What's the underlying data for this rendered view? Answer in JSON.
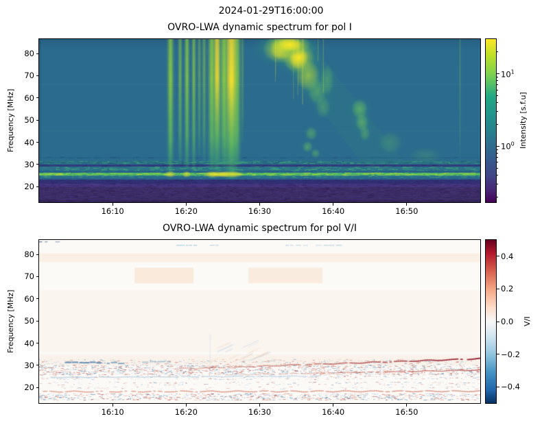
{
  "suptitle": "2024-01-29T16:00:00",
  "axes": {
    "ylabel": "Frequency [MHz]",
    "x_ticks": [
      {
        "label": "16:10",
        "minute": 10
      },
      {
        "label": "16:20",
        "minute": 20
      },
      {
        "label": "16:30",
        "minute": 30
      },
      {
        "label": "16:40",
        "minute": 40
      },
      {
        "label": "16:50",
        "minute": 50
      }
    ],
    "y_ticks": [
      80,
      70,
      60,
      50,
      40,
      30,
      20
    ],
    "x_range": [
      "16:00",
      "17:00"
    ],
    "y_range_mhz": [
      13,
      86.5
    ]
  },
  "chart_data": [
    {
      "type": "heatmap",
      "title": "OVRO-LWA dynamic spectrum for pol I",
      "xlabel": "",
      "ylabel": "Frequency [MHz]",
      "x_tick_labels": [
        "16:10",
        "16:20",
        "16:30",
        "16:40",
        "16:50"
      ],
      "x_range": [
        "16:00",
        "17:00"
      ],
      "y_ticks": [
        80,
        70,
        60,
        50,
        40,
        30,
        20
      ],
      "y_range_mhz": [
        13,
        86.5
      ],
      "colormap": "viridis",
      "colorbar": {
        "label": "Intensity [s.f.u]",
        "scale": "log",
        "range": [
          0.17,
          30
        ],
        "major_ticks": [
          {
            "mantissa": "10",
            "exponent": "1",
            "value": 10
          },
          {
            "mantissa": "10",
            "exponent": "0",
            "value": 1
          }
        ],
        "gradient_stops": [
          "#fde725 0%",
          "#bddf26 10%",
          "#7ad151 22%",
          "#22a884 35%",
          "#21918c 48%",
          "#2a788e 60%",
          "#355f8d 72%",
          "#414487 84%",
          "#482475 93%",
          "#440154 100%"
        ]
      },
      "phenomena": {
        "background": "#2b6b8d",
        "faint_lines": [
          {
            "f": 66,
            "color": "#ffffff",
            "alpha": 0.05
          },
          {
            "f": 45,
            "color": "#ffffff",
            "alpha": 0.03
          }
        ],
        "bands": [
          {
            "f0": 32.8,
            "f1": 33.5,
            "color": "#25608a",
            "alpha": 0.5,
            "noise": 0.15,
            "noise_colors": [
              "#1f4d78"
            ]
          },
          {
            "f0": 30.2,
            "f1": 31.4,
            "color": "#2c7a7d",
            "alpha": 0.55,
            "noise": 0.5,
            "noise_colors": [
              "#3fae74",
              "#1f4d78"
            ]
          },
          {
            "f0": 29.0,
            "f1": 29.9,
            "color": "#31397b",
            "alpha": 0.9,
            "noise": 0.3,
            "noise_colors": [
              "#27275f",
              "#3b4f85"
            ]
          },
          {
            "f0": 27.1,
            "f1": 29.0,
            "color": "#2e7e83",
            "alpha": 0.5,
            "noise": 0.55,
            "noise_colors": [
              "#45b878",
              "#2a6a8c"
            ]
          },
          {
            "f0": 26.3,
            "f1": 27.1,
            "color": "#275c86",
            "alpha": 0.7,
            "noise": 0.2,
            "noise_colors": [
              "#2f7f82"
            ]
          },
          {
            "f0": 25.0,
            "f1": 26.3,
            "color": "#56c15f",
            "alpha": 0.95,
            "noise": 0.65,
            "noise_colors": [
              "#d8e429",
              "#8ed645",
              "#2f8f7f"
            ]
          },
          {
            "f0": 24.1,
            "f1": 25.0,
            "color": "#2c6f8c",
            "alpha": 0.8,
            "noise": 0.25,
            "noise_colors": [
              "#3fae74"
            ]
          },
          {
            "f0": 23.3,
            "f1": 24.1,
            "color": "#2a5f88",
            "alpha": 0.7,
            "noise": 0.2,
            "noise_colors": [
              "#2f7f82"
            ]
          },
          {
            "f0": 21.4,
            "f1": 23.3,
            "color": "#322e74",
            "alpha": 0.92,
            "noise": 0.35,
            "noise_colors": [
              "#262055",
              "#3d3f82"
            ]
          },
          {
            "f0": 19.8,
            "f1": 21.4,
            "color": "#45307c",
            "alpha": 0.9,
            "noise": 0.4,
            "noise_colors": [
              "#533f85",
              "#332158"
            ]
          },
          {
            "f0": 13.0,
            "f1": 19.8,
            "color": "#3c2c66",
            "alpha": 1,
            "noise": 0.5,
            "noise_colors": [
              "#473677",
              "#2e2050",
              "#44386e"
            ]
          },
          {
            "f0": 13.0,
            "f1": 14.0,
            "color": "#32235a",
            "alpha": 0.7,
            "noise": 0.3,
            "noise_colors": [
              "#2a1c4e"
            ]
          }
        ],
        "type_iii_bursts": [
          {
            "t": 17.8,
            "w": 0.45,
            "f_low": 26.0,
            "i": 0.85
          },
          {
            "t": 19.1,
            "w": 0.3,
            "f_low": 30.0,
            "i": 0.6
          },
          {
            "t": 20.1,
            "w": 0.35,
            "f_low": 28.0,
            "i": 0.8
          },
          {
            "t": 21.0,
            "w": 0.3,
            "f_low": 27.0,
            "i": 0.7
          },
          {
            "t": 21.7,
            "w": 0.25,
            "f_low": 34.0,
            "i": 0.45
          },
          {
            "t": 22.4,
            "w": 0.3,
            "f_low": 32.0,
            "i": 0.5
          },
          {
            "t": 23.4,
            "w": 0.5,
            "f_low": 28.0,
            "i": 0.85
          },
          {
            "t": 24.2,
            "w": 0.6,
            "f_low": 27.0,
            "i": 0.9
          },
          {
            "t": 25.1,
            "w": 0.5,
            "f_low": 29.0,
            "i": 0.85
          },
          {
            "t": 26.1,
            "w": 1.0,
            "f_low": 23.5,
            "i": 1.0
          },
          {
            "t": 26.9,
            "w": 0.45,
            "f_low": 30.0,
            "i": 0.7
          },
          {
            "t": 27.6,
            "w": 0.2,
            "f_low": 40.0,
            "i": 0.35
          },
          {
            "t": 57.2,
            "w": 0.15,
            "f_low": 34.0,
            "i": 0.25
          }
        ],
        "overlays": [
          {
            "f0": 21.4,
            "f1": 23.3,
            "color": "#322e74",
            "alpha": 0.4
          },
          {
            "f0": 29.0,
            "f1": 29.9,
            "color": "#31397b",
            "alpha": 0.3
          }
        ],
        "type_ii": {
          "lane": {
            "t_top": 31.0,
            "t_top2": 36.5,
            "t_bot": 44.0,
            "t_bot2": 50.0,
            "f_bot": 30.0,
            "color": "#3f9f7a",
            "alpha": 0.1
          },
          "blobs": [
            {
              "t": 33.0,
              "f": 82,
              "rt": 2.6,
              "rf": 6.5,
              "i": 1.0
            },
            {
              "t": 35.3,
              "f": 78,
              "rt": 2.2,
              "rf": 7.0,
              "i": 1.0
            },
            {
              "t": 34.2,
              "f": 84,
              "rt": 2.8,
              "rf": 4.0,
              "i": 0.95
            },
            {
              "t": 36.6,
              "f": 70,
              "rt": 1.6,
              "rf": 7.0,
              "i": 0.8
            },
            {
              "t": 37.8,
              "f": 63,
              "rt": 1.3,
              "rf": 6.0,
              "i": 0.6
            },
            {
              "t": 39.2,
              "f": 68,
              "rt": 0.9,
              "rf": 7.0,
              "i": 0.5
            },
            {
              "t": 38.6,
              "f": 56,
              "rt": 1.0,
              "rf": 5.0,
              "i": 0.45
            },
            {
              "t": 43.6,
              "f": 55,
              "rt": 1.1,
              "rf": 4.5,
              "i": 0.75
            },
            {
              "t": 43.9,
              "f": 49,
              "rt": 0.9,
              "rf": 4.0,
              "i": 0.7
            },
            {
              "t": 44.3,
              "f": 44,
              "rt": 0.7,
              "rf": 3.5,
              "i": 0.5
            },
            {
              "t": 37.0,
              "f": 44,
              "rt": 0.8,
              "rf": 3.0,
              "i": 0.55
            },
            {
              "t": 36.5,
              "f": 38,
              "rt": 0.7,
              "rf": 2.5,
              "i": 0.6
            },
            {
              "t": 37.6,
              "f": 35,
              "rt": 0.6,
              "rf": 2.0,
              "i": 0.5
            },
            {
              "t": 47.8,
              "f": 40,
              "rt": 1.6,
              "rf": 5.0,
              "i": 0.3
            },
            {
              "t": 52.5,
              "f": 34,
              "rt": 2.2,
              "rf": 3.5,
              "i": 0.22
            }
          ]
        }
      }
    },
    {
      "type": "heatmap",
      "title": "OVRO-LWA dynamic spectrum for pol V/I",
      "xlabel": "",
      "ylabel": "Frequency [MHz]",
      "x_tick_labels": [
        "16:10",
        "16:20",
        "16:30",
        "16:40",
        "16:50"
      ],
      "x_range": [
        "16:00",
        "17:00"
      ],
      "y_ticks": [
        80,
        70,
        60,
        50,
        40,
        30,
        20
      ],
      "y_range_mhz": [
        13,
        86.5
      ],
      "colormap": "RdBu_r",
      "colorbar": {
        "label": "V/I",
        "scale": "linear",
        "range": [
          -0.5,
          0.5
        ],
        "ticks": [
          {
            "label": "0.4",
            "value": 0.4
          },
          {
            "label": "0.2",
            "value": 0.2
          },
          {
            "label": "0.0",
            "value": 0.0
          },
          {
            "label": "−0.2",
            "value": -0.2
          },
          {
            "label": "−0.4",
            "value": -0.4
          }
        ],
        "gradient_stops": [
          "#67001f 0%",
          "#b2182b 8%",
          "#d6604d 19%",
          "#f4a582 30%",
          "#fddbc7 41%",
          "#f7f7f7 50%",
          "#d1e5f0 59%",
          "#92c5de 70%",
          "#4393c3 81%",
          "#2166ac 92%",
          "#053061 100%"
        ]
      },
      "phenomena": {
        "background": "#fcfaf7",
        "tint_bands": [
          {
            "f0": 76.5,
            "f1": 80.5,
            "color": "#f7e3d2",
            "alpha": 0.5,
            "t0": 0,
            "t1": 60
          },
          {
            "f0": 67.0,
            "f1": 74.0,
            "color": "#f6ddc6",
            "alpha": 0.55,
            "t0": 13,
            "t1": 21
          },
          {
            "f0": 67.0,
            "f1": 74.0,
            "color": "#f6ddc6",
            "alpha": 0.5,
            "t0": 28.5,
            "t1": 38.5
          },
          {
            "f0": 36.0,
            "f1": 64.0,
            "color": "#f8ece1",
            "alpha": 0.35,
            "t0": 0,
            "t1": 60
          },
          {
            "f0": 30.0,
            "f1": 35.0,
            "color": "#f6e7da",
            "alpha": 0.4,
            "t0": 0,
            "t1": 60
          }
        ],
        "dash_rows": [
          {
            "f": 84.2,
            "t0": 18.0,
            "t1": 26.0,
            "color": "#9ec6de",
            "alpha": 0.8
          },
          {
            "f": 84.2,
            "t0": 33.5,
            "t1": 40.8,
            "color": "#a9cbe0",
            "alpha": 0.7
          },
          {
            "f": 85.8,
            "t0": 0.0,
            "t1": 2.5,
            "color": "#46688e",
            "alpha": 0.8
          }
        ],
        "wisps": {
          "t0": 21,
          "t1": 30,
          "f0": 30,
          "f1": 38.5,
          "colors": [
            "#bcd5e6",
            "#f0c8ab"
          ],
          "count": 16,
          "alpha": 0.55
        },
        "noise_bands": [
          {
            "f0": 29.9,
            "f1": 32.8,
            "density": 0.22,
            "mix": 0.4,
            "alpha": 0.55
          },
          {
            "f0": 25.7,
            "f1": 29.9,
            "density": 0.5,
            "mix": 0.5,
            "alpha": 0.7
          },
          {
            "f0": 23.5,
            "f1": 25.6,
            "density": 0.22,
            "mix": 0.35,
            "alpha": 0.5
          },
          {
            "f0": 20.9,
            "f1": 22.6,
            "density": 0.2,
            "mix": 0.5,
            "alpha": 0.5
          },
          {
            "f0": 19.2,
            "f1": 20.3,
            "density": 0.12,
            "mix": 0.6,
            "alpha": 0.4
          },
          {
            "f0": 14.3,
            "f1": 17.2,
            "density": 0.5,
            "mix": 0.45,
            "alpha": 0.7
          }
        ],
        "blue_segments": [
          {
            "t0": 3.5,
            "t1": 8.3,
            "f": 31.6,
            "color": "#4b80ad",
            "alpha": 0.85,
            "lw": 2
          },
          {
            "t0": 9.2,
            "t1": 11.2,
            "f": 31.4,
            "color": "#6b99bd",
            "alpha": 0.8,
            "lw": 2
          },
          {
            "t0": 14.0,
            "t1": 17.5,
            "f": 31.8,
            "color": "#86abc8",
            "alpha": 0.7,
            "lw": 1.5
          }
        ],
        "drift_lines": [
          {
            "t0": 19.0,
            "f0": 28.7,
            "t1": 60,
            "f1": 33.3,
            "c0": "#d98a6d",
            "c1": "#8e1023",
            "a0": 0.35,
            "a1": 0.95,
            "lw": 1.8,
            "wave": 0.25
          },
          {
            "t0": 25.0,
            "f0": 25.9,
            "t1": 60,
            "f1": 28.1,
            "c0": "#dba089",
            "c1": "#b03a32",
            "a0": 0.3,
            "a1": 0.75,
            "lw": 1.3,
            "wave": 0.2
          },
          {
            "t0": 1.5,
            "f0": 24.8,
            "t1": 38,
            "f1": 25.4,
            "c0": "#a5c6dd",
            "c1": "#a5c6dd",
            "a0": 0.65,
            "a1": 0.5,
            "lw": 1.4,
            "wave": 0.15
          },
          {
            "t0": 0.5,
            "f0": 18.4,
            "t1": 60,
            "f1": 18.6,
            "c0": "#d4694f",
            "c1": "#c65a43",
            "a0": 0.55,
            "a1": 0.55,
            "lw": 1.5,
            "wave": 0.3
          }
        ],
        "vert_streaks": [
          {
            "t": 23.2,
            "f0": 26,
            "f1": 44,
            "color": "#b8d3e6",
            "alpha": 0.25
          }
        ]
      }
    }
  ]
}
